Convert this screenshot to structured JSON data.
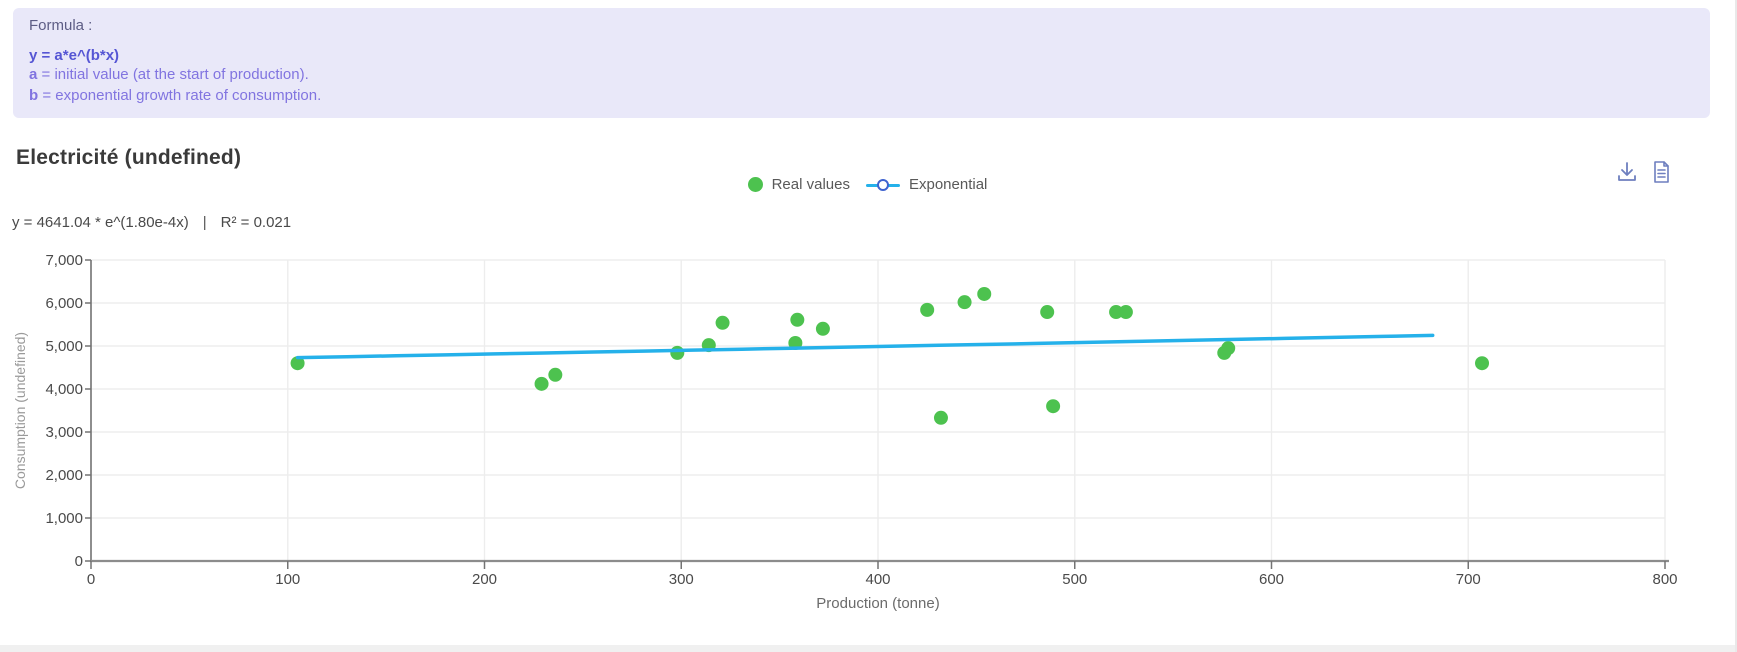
{
  "formula_panel": {
    "heading": "Formula :",
    "formula": "y = a*e^(b*x)",
    "lines": [
      {
        "term": "a",
        "rest": " = initial value (at the start of production)."
      },
      {
        "term": "b",
        "rest": " = exponential growth rate of consumption."
      }
    ]
  },
  "chart_header": {
    "title": "Electricité (undefined)",
    "equation": "y = 4641.04 * e^(1.80e-4x)",
    "separator": "|",
    "r_squared": "R² = 0.021",
    "icons": [
      {
        "name": "download-icon"
      },
      {
        "name": "report-icon"
      }
    ],
    "icon_color": "#6e7fbf"
  },
  "legend": [
    {
      "label": "Real values",
      "type": "dot",
      "color": "#4dc24f"
    },
    {
      "label": "Exponential",
      "type": "line-circle",
      "line_color": "#25b1ea",
      "marker_border": "#3e63cf"
    }
  ],
  "chart_data": {
    "type": "scatter",
    "title": "Electricité (undefined)",
    "xlabel": "Production (tonne)",
    "ylabel": "Consumption (undefined)",
    "xlim": [
      0,
      800
    ],
    "ylim": [
      0,
      7000
    ],
    "x_ticks": [
      0,
      100,
      200,
      300,
      400,
      500,
      600,
      700,
      800
    ],
    "y_ticks": [
      0,
      1000,
      2000,
      3000,
      4000,
      5000,
      6000,
      7000
    ],
    "grid": true,
    "legend_position": "top-center",
    "equation": "y = 4641.04 * e^(1.80e-4x)",
    "r_squared": 0.021,
    "series": [
      {
        "name": "Real values",
        "type": "scatter",
        "color": "#4dc24f",
        "points": [
          [
            105,
            4600
          ],
          [
            229,
            4120
          ],
          [
            236,
            4330
          ],
          [
            298,
            4840
          ],
          [
            314,
            5020
          ],
          [
            321,
            5540
          ],
          [
            358,
            5070
          ],
          [
            359,
            5610
          ],
          [
            372,
            5400
          ],
          [
            425,
            5840
          ],
          [
            432,
            3330
          ],
          [
            444,
            6020
          ],
          [
            454,
            6210
          ],
          [
            486,
            5790
          ],
          [
            489,
            3600
          ],
          [
            521,
            5790
          ],
          [
            526,
            5790
          ],
          [
            576,
            4840
          ],
          [
            578,
            4950
          ],
          [
            707,
            4600
          ]
        ]
      },
      {
        "name": "Exponential",
        "type": "line",
        "color": "#25b1ea",
        "fit": {
          "a": 4641.04,
          "b": 0.00018,
          "x_start": 105,
          "x_end": 707
        }
      }
    ]
  },
  "colors": {
    "panel_bg": "#e9e8f9",
    "formula_bold": "#5555d4",
    "formula_body": "#8174e0",
    "scatter_green": "#4dc24f",
    "trend_blue": "#25b1ea",
    "grid_line": "#ededed",
    "axis_line": "#8c8c8c",
    "tick_label": "#4a4a4a",
    "axis_title_y": "#9a9a9a",
    "axis_title_x": "#6b6b6b"
  }
}
